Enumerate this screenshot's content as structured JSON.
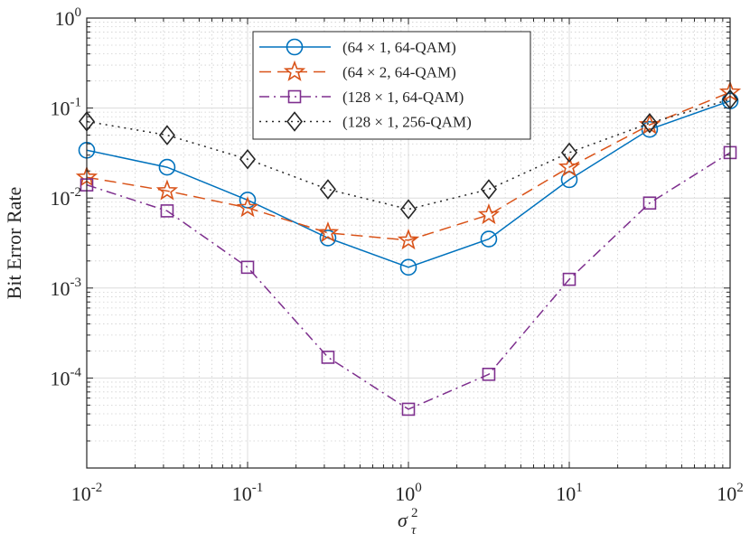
{
  "chart_data": {
    "type": "line",
    "title": "",
    "xlabel": "σ",
    "xlabel_sup": "2",
    "xlabel_sub": "τ",
    "ylabel": "Bit Error Rate",
    "xscale": "log",
    "yscale": "log",
    "xlim": [
      0.01,
      100
    ],
    "ylim": [
      1e-05,
      1
    ],
    "grid": true,
    "minor_grid": true,
    "legend_position": "top-right",
    "x_ticks": [
      {
        "value": 0.01,
        "base": "10",
        "exp": "-2"
      },
      {
        "value": 0.1,
        "base": "10",
        "exp": "-1"
      },
      {
        "value": 1,
        "base": "10",
        "exp": "0"
      },
      {
        "value": 10,
        "base": "10",
        "exp": "1"
      },
      {
        "value": 100,
        "base": "10",
        "exp": "2"
      }
    ],
    "y_ticks": [
      {
        "value": 1,
        "base": "10",
        "exp": "0"
      },
      {
        "value": 0.1,
        "base": "10",
        "exp": "-1"
      },
      {
        "value": 0.01,
        "base": "10",
        "exp": "-2"
      },
      {
        "value": 0.001,
        "base": "10",
        "exp": "-3"
      },
      {
        "value": 0.0001,
        "base": "10",
        "exp": "-4"
      }
    ],
    "x": [
      0.01,
      0.0316,
      0.1,
      0.316,
      1,
      3.16,
      10,
      31.6,
      100
    ],
    "series": [
      {
        "name": "(64 × 1, 64-QAM)",
        "color": "#0072BD",
        "marker": "circle",
        "dash": "solid",
        "values": [
          0.034,
          0.022,
          0.0095,
          0.0036,
          0.0017,
          0.0035,
          0.016,
          0.058,
          0.12
        ]
      },
      {
        "name": "(64 × 2, 64-QAM)",
        "color": "#D95319",
        "marker": "star",
        "dash": "dash",
        "values": [
          0.017,
          0.012,
          0.0078,
          0.0041,
          0.0034,
          0.0065,
          0.022,
          0.065,
          0.15
        ]
      },
      {
        "name": "(128 × 1, 64-QAM)",
        "color": "#7E2F8E",
        "marker": "square",
        "dash": "dashdot",
        "values": [
          0.014,
          0.0072,
          0.0017,
          0.00017,
          4.5e-05,
          0.00011,
          0.00125,
          0.0088,
          0.032
        ]
      },
      {
        "name": "(128 × 1, 256-QAM)",
        "color": "#262626",
        "marker": "diamond",
        "dash": "dot",
        "values": [
          0.071,
          0.05,
          0.027,
          0.0125,
          0.0075,
          0.0125,
          0.032,
          0.068,
          0.125
        ]
      }
    ]
  }
}
